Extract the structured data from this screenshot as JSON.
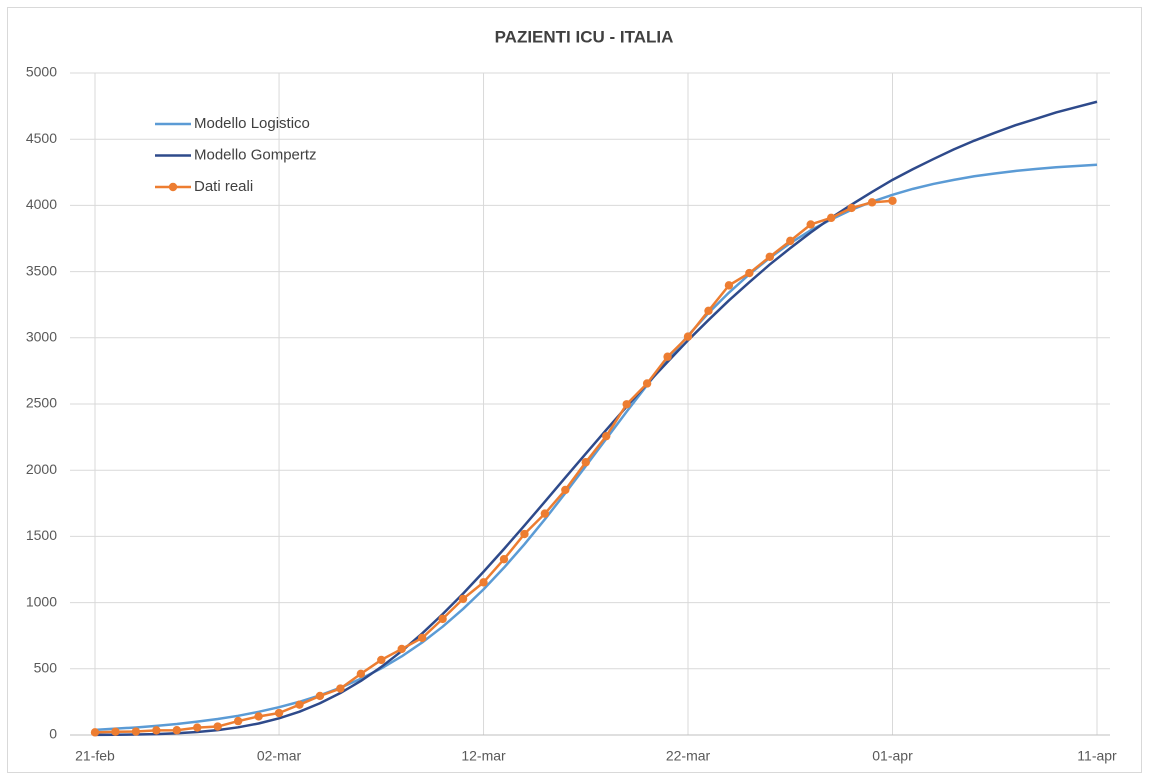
{
  "chart_data": {
    "type": "line",
    "title": "PAZIENTI ICU - ITALIA",
    "categories": [
      "21-feb",
      null,
      null,
      null,
      null,
      null,
      null,
      null,
      null,
      "02-mar",
      null,
      null,
      null,
      null,
      null,
      null,
      null,
      null,
      null,
      "12-mar",
      null,
      null,
      null,
      null,
      null,
      null,
      null,
      null,
      null,
      "22-mar",
      null,
      null,
      null,
      null,
      null,
      null,
      null,
      null,
      null,
      "01-apr",
      null,
      null,
      null,
      null,
      null,
      null,
      null,
      null,
      null,
      "11-apr"
    ],
    "series": [
      {
        "name": "Modello Logistico",
        "color": "#5b9bd5",
        "marker": false,
        "values": [
          39,
          48,
          57,
          69,
          83,
          101,
          121,
          145,
          175,
          210,
          251,
          300,
          357,
          425,
          503,
          594,
          699,
          818,
          952,
          1100,
          1264,
          1440,
          1629,
          1827,
          2031,
          2237,
          2442,
          2643,
          2836,
          3017,
          3187,
          3341,
          3480,
          3604,
          3715,
          3812,
          3894,
          3967,
          4028,
          4080,
          4125,
          4162,
          4193,
          4220,
          4241,
          4260,
          4275,
          4288,
          4298,
          4307
        ]
      },
      {
        "name": "Modello Gompertz",
        "color": "#2e4a8b",
        "marker": false,
        "values": [
          1,
          2,
          4,
          7,
          13,
          23,
          37,
          58,
          87,
          126,
          176,
          240,
          317,
          408,
          514,
          634,
          767,
          913,
          1068,
          1233,
          1405,
          1582,
          1762,
          1944,
          2125,
          2304,
          2481,
          2653,
          2818,
          2981,
          3134,
          3282,
          3420,
          3554,
          3677,
          3795,
          3906,
          4006,
          4102,
          4193,
          4274,
          4350,
          4423,
          4489,
          4548,
          4605,
          4653,
          4702,
          4743,
          4783
        ]
      },
      {
        "name": "Dati reali",
        "color": "#ed7d31",
        "marker": true,
        "values": [
          20,
          25,
          26,
          35,
          36,
          56,
          64,
          105,
          140,
          166,
          229,
          295,
          351,
          462,
          567,
          650,
          733,
          877,
          1028,
          1153,
          1328,
          1518,
          1672,
          1851,
          2060,
          2257,
          2498,
          2655,
          2857,
          3009,
          3204,
          3396,
          3489,
          3612,
          3732,
          3856,
          3906,
          3981,
          4023,
          4035,
          null,
          null,
          null,
          null,
          null,
          null,
          null,
          null,
          null,
          null
        ]
      }
    ],
    "ylim": [
      0,
      5000
    ],
    "yticks": [
      0,
      500,
      1000,
      1500,
      2000,
      2500,
      3000,
      3500,
      4000,
      4500,
      5000
    ],
    "grid": true,
    "legend": "upper left"
  }
}
